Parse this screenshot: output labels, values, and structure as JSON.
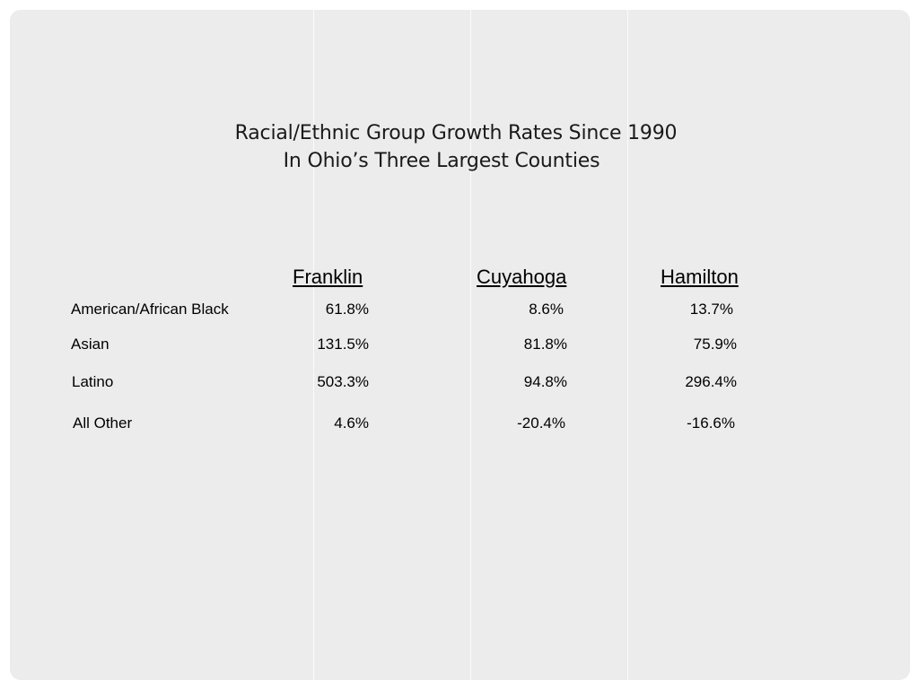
{
  "title": {
    "line1": "Racial/Ethnic Group Growth Rates Since 1990",
    "line2": "In Ohio’s Three Largest Counties"
  },
  "columns": [
    "Franklin",
    "Cuyahoga",
    "Hamilton"
  ],
  "rows": [
    {
      "label": "American/African Black",
      "values": [
        "61.8%",
        "8.6%",
        "13.7%"
      ]
    },
    {
      "label": "Asian",
      "values": [
        "131.5%",
        "81.8%",
        "75.9%"
      ]
    },
    {
      "label": "Latino",
      "values": [
        "503.3%",
        "94.8%",
        "296.4%"
      ]
    },
    {
      "label": "All Other",
      "values": [
        "4.6%",
        "-20.4%",
        "-16.6%"
      ]
    }
  ],
  "colors": {
    "slide_background": "#ececec",
    "text": "#000000"
  }
}
